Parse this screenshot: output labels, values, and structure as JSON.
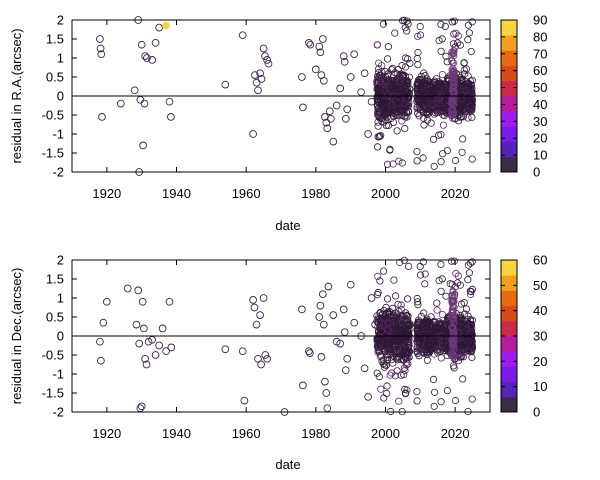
{
  "chart_data": [
    {
      "type": "scatter",
      "xlabel": "date",
      "ylabel": "residual in R.A.(arcsec)",
      "xlim": [
        1910,
        2030
      ],
      "ylim": [
        -2,
        2
      ],
      "xticks": [
        "1920",
        "1940",
        "1960",
        "1980",
        "2000",
        "2020"
      ],
      "yticks": [
        "-2",
        "-1.5",
        "-1",
        "-0.5",
        "0",
        "0.5",
        "1",
        "1.5",
        "2"
      ],
      "colorbar": {
        "range": [
          0,
          90
        ],
        "ticks": [
          "0",
          "10",
          "20",
          "30",
          "40",
          "50",
          "60",
          "70",
          "80",
          "90"
        ],
        "colors": [
          "#3a2c45",
          "#5523b5",
          "#7a1be8",
          "#9c1cf0",
          "#b51d9b",
          "#c82b4c",
          "#d8491c",
          "#e66a13",
          "#efa01f",
          "#f7d43f"
        ]
      },
      "zero_line": true,
      "points": [
        [
          1918,
          1.5,
          5
        ],
        [
          1918.2,
          1.25,
          5
        ],
        [
          1918.4,
          1.1,
          5
        ],
        [
          1918.6,
          -0.55,
          5
        ],
        [
          1924,
          -0.2,
          5
        ],
        [
          1928,
          0.15,
          5
        ],
        [
          1929,
          2.0,
          5
        ],
        [
          1929.3,
          -2.0,
          5
        ],
        [
          1929.6,
          -0.1,
          5
        ],
        [
          1930,
          1.35,
          5
        ],
        [
          1930.4,
          -1.3,
          5
        ],
        [
          1930.8,
          -0.2,
          5
        ],
        [
          1931,
          1.05,
          5
        ],
        [
          1931.5,
          1.0,
          5
        ],
        [
          1933,
          0.95,
          5
        ],
        [
          1934,
          1.4,
          5
        ],
        [
          1935,
          1.8,
          5
        ],
        [
          1937,
          1.85,
          85
        ],
        [
          1938,
          -0.15,
          5
        ],
        [
          1938.4,
          -0.55,
          5
        ],
        [
          1954,
          0.3,
          5
        ],
        [
          1959,
          1.6,
          5
        ],
        [
          1962,
          -1.0,
          5
        ],
        [
          1962.5,
          0.55,
          5
        ],
        [
          1963,
          0.35,
          5
        ],
        [
          1963.4,
          0.15,
          5
        ],
        [
          1964,
          0.6,
          5
        ],
        [
          1964.4,
          0.45,
          5
        ],
        [
          1965,
          1.25,
          5
        ],
        [
          1965.4,
          1.05,
          5
        ],
        [
          1966,
          0.95,
          5
        ],
        [
          1966.4,
          0.85,
          5
        ],
        [
          1976,
          0.5,
          5
        ],
        [
          1976.3,
          -0.3,
          5
        ],
        [
          1978,
          1.4,
          5
        ],
        [
          1978.4,
          1.35,
          5
        ],
        [
          1980,
          0.7,
          5
        ],
        [
          1981,
          1.3,
          5
        ],
        [
          1981.3,
          1.15,
          5
        ],
        [
          1981.6,
          0.55,
          5
        ],
        [
          1982,
          1.5,
          5
        ],
        [
          1982.3,
          0.4,
          5
        ],
        [
          1982.6,
          -0.55,
          5
        ],
        [
          1983,
          -0.7,
          5
        ],
        [
          1983.3,
          -0.85,
          5
        ],
        [
          1984,
          -0.4,
          5
        ],
        [
          1984.3,
          -0.6,
          5
        ],
        [
          1985,
          -1.2,
          5
        ],
        [
          1986,
          -0.25,
          5
        ],
        [
          1987,
          0.2,
          5
        ],
        [
          1988,
          1.05,
          5
        ],
        [
          1988.3,
          0.9,
          5
        ],
        [
          1988.6,
          -0.6,
          5
        ],
        [
          1989,
          -0.35,
          5
        ],
        [
          1990,
          0.5,
          5
        ],
        [
          1991,
          1.1,
          5
        ],
        [
          1993,
          0.1,
          5
        ],
        [
          1994,
          0.6,
          5
        ],
        [
          1995,
          -1.0,
          5
        ],
        [
          1996,
          -0.15,
          5
        ]
      ]
    },
    {
      "type": "scatter",
      "xlabel": "date",
      "ylabel": "residual in Dec.(arcsec)",
      "xlim": [
        1910,
        2030
      ],
      "ylim": [
        -2,
        2
      ],
      "xticks": [
        "1920",
        "1940",
        "1960",
        "1980",
        "2000",
        "2020"
      ],
      "yticks": [
        "-2",
        "-1.5",
        "-1",
        "-0.5",
        "0",
        "0.5",
        "1",
        "1.5",
        "2"
      ],
      "colorbar": {
        "range": [
          0,
          60
        ],
        "ticks": [
          "0",
          "10",
          "20",
          "30",
          "40",
          "50",
          "60"
        ],
        "colors": [
          "#3a2c45",
          "#5523b5",
          "#7a1be8",
          "#9c1cf0",
          "#b51d9b",
          "#c82b4c",
          "#d8491c",
          "#e66a13",
          "#efa01f",
          "#f7d43f"
        ]
      },
      "zero_line": true,
      "points": [
        [
          1918,
          -0.15,
          5
        ],
        [
          1918.3,
          -0.65,
          5
        ],
        [
          1919,
          0.35,
          5
        ],
        [
          1920,
          0.9,
          5
        ],
        [
          1926,
          1.25,
          5
        ],
        [
          1928.5,
          0.3,
          5
        ],
        [
          1929,
          1.2,
          5
        ],
        [
          1929.3,
          -0.2,
          5
        ],
        [
          1929.6,
          -1.9,
          5
        ],
        [
          1930,
          -1.85,
          5
        ],
        [
          1930.3,
          0.9,
          5
        ],
        [
          1930.6,
          0.2,
          5
        ],
        [
          1931,
          -0.6,
          5
        ],
        [
          1931.4,
          -0.75,
          5
        ],
        [
          1932,
          -0.15,
          5
        ],
        [
          1933,
          -0.1,
          5
        ],
        [
          1934,
          -0.5,
          5
        ],
        [
          1935,
          -0.25,
          5
        ],
        [
          1936,
          0.2,
          5
        ],
        [
          1937,
          -0.4,
          5
        ],
        [
          1938,
          0.9,
          5
        ],
        [
          1938.5,
          -0.3,
          5
        ],
        [
          1954,
          -0.35,
          5
        ],
        [
          1959,
          -0.4,
          5
        ],
        [
          1959.5,
          -1.7,
          5
        ],
        [
          1962,
          0.95,
          5
        ],
        [
          1962.4,
          0.75,
          5
        ],
        [
          1963,
          0.3,
          5
        ],
        [
          1963.4,
          -0.6,
          5
        ],
        [
          1964,
          0.55,
          5
        ],
        [
          1964.3,
          -0.75,
          5
        ],
        [
          1965,
          1.0,
          5
        ],
        [
          1965.5,
          -0.5,
          5
        ],
        [
          1966,
          -0.6,
          5
        ],
        [
          1971,
          -2.0,
          5
        ],
        [
          1976,
          0.7,
          5
        ],
        [
          1976.3,
          -1.3,
          5
        ],
        [
          1978,
          -0.4,
          5
        ],
        [
          1978.3,
          -0.45,
          5
        ],
        [
          1981,
          0.5,
          5
        ],
        [
          1981.3,
          0.8,
          5
        ],
        [
          1981.6,
          -0.55,
          5
        ],
        [
          1982,
          1.1,
          5
        ],
        [
          1982.3,
          0.3,
          5
        ],
        [
          1982.6,
          -1.2,
          5
        ],
        [
          1983,
          -1.5,
          5
        ],
        [
          1983.3,
          -1.9,
          5
        ],
        [
          1983.6,
          1.3,
          5
        ],
        [
          1985,
          0.55,
          5
        ],
        [
          1986,
          -0.15,
          5
        ],
        [
          1987,
          -0.2,
          5
        ],
        [
          1988,
          0.7,
          5
        ],
        [
          1988.3,
          0.1,
          5
        ],
        [
          1988.6,
          -0.9,
          5
        ],
        [
          1989,
          -0.6,
          5
        ],
        [
          1990,
          1.35,
          5
        ],
        [
          1991,
          0.35,
          5
        ],
        [
          1993,
          0.0,
          5
        ],
        [
          1994,
          -0.85,
          5
        ],
        [
          1995,
          -1.6,
          5
        ],
        [
          1996,
          1.0,
          5
        ],
        [
          1997,
          0.3,
          5
        ]
      ]
    }
  ]
}
